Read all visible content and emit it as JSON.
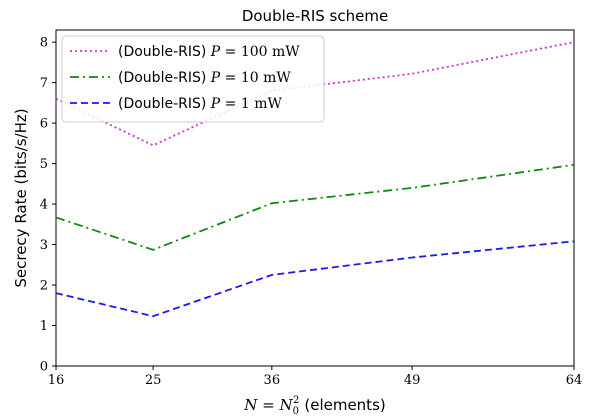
{
  "chart_data": {
    "type": "line",
    "title": "Double-RIS scheme",
    "xlabel": {
      "math": "N = N",
      "sub": "0",
      "sup": "2",
      "text": "(elements)"
    },
    "ylabel": "Secrecy Rate (bits/s/Hz)",
    "x": [
      16,
      25,
      36,
      49,
      64
    ],
    "xticks": [
      "16",
      "25",
      "36",
      "49",
      "64"
    ],
    "yticks": [
      "0",
      "1",
      "2",
      "3",
      "4",
      "5",
      "6",
      "7",
      "8"
    ],
    "xlim": [
      16,
      64
    ],
    "ylim": [
      0,
      8.3
    ],
    "grid": false,
    "legend_position": "top-left",
    "series": [
      {
        "name": "(Double-RIS)",
        "p_label": "P",
        "p_value": "= 100 mW",
        "color": "#cc33cc",
        "style": "dotted",
        "values": [
          6.6,
          5.45,
          6.8,
          7.22,
          8.0
        ]
      },
      {
        "name": "(Double-RIS)",
        "p_label": "P",
        "p_value": "= 10 mW",
        "color": "#118811",
        "style": "dashdot",
        "values": [
          3.67,
          2.87,
          4.02,
          4.4,
          4.97
        ]
      },
      {
        "name": "(Double-RIS)",
        "p_label": "P",
        "p_value": "= 1 mW",
        "color": "#1a1aee",
        "style": "dashed",
        "values": [
          1.8,
          1.23,
          2.25,
          2.68,
          3.08
        ]
      }
    ]
  }
}
